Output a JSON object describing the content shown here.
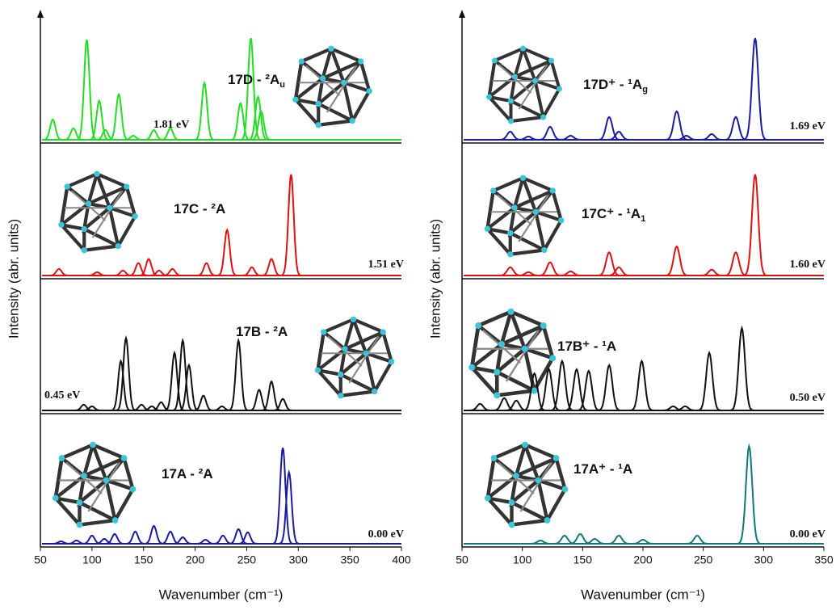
{
  "chart_data": [
    {
      "type": "spectrum",
      "xlabel": "Wavenumber (cm⁻¹)",
      "ylabel": "Intensity (abr. units)",
      "xlim": [
        50,
        400
      ],
      "xticks": [
        50,
        100,
        150,
        200,
        250,
        300,
        350,
        400
      ],
      "ylim": [
        0,
        160
      ],
      "panels": [
        {
          "label": "17D - ²A",
          "sub": "u",
          "energy": "1.81 eV",
          "color": "#22dd22",
          "x": [
            62,
            82,
            95,
            107,
            113,
            126,
            140,
            160,
            176,
            209,
            244,
            254,
            261,
            264
          ],
          "values": [
            25,
            14,
            123,
            48,
            12,
            56,
            5,
            12,
            14,
            70,
            45,
            125,
            53,
            35
          ]
        },
        {
          "label": "17C - ²A",
          "energy": "1.51 eV",
          "color": "#dd1111",
          "x": [
            68,
            105,
            130,
            145,
            155,
            165,
            178,
            211,
            231,
            255,
            274,
            293
          ],
          "values": [
            8,
            4,
            6,
            15,
            20,
            6,
            8,
            15,
            55,
            10,
            20,
            122
          ]
        },
        {
          "label": "17B - ²A",
          "energy": "0.45 eV",
          "color": "#111111",
          "x": [
            92,
            100,
            128,
            133,
            148,
            158,
            167,
            180,
            188,
            194,
            208,
            226,
            242,
            262,
            274,
            285
          ],
          "values": [
            7,
            5,
            60,
            88,
            7,
            5,
            10,
            70,
            85,
            55,
            18,
            5,
            85,
            25,
            35,
            14
          ]
        },
        {
          "label": "17A - ²A",
          "energy": "0.00 eV",
          "color": "#1a1aa0",
          "x": [
            70,
            85,
            100,
            112,
            122,
            142,
            160,
            176,
            188,
            210,
            227,
            242,
            251,
            285,
            291
          ],
          "values": [
            3,
            4,
            10,
            6,
            12,
            15,
            22,
            15,
            8,
            5,
            10,
            18,
            14,
            118,
            88
          ]
        }
      ]
    },
    {
      "type": "spectrum",
      "xlabel": "Wavenumber (cm⁻¹)",
      "ylabel": "Intensity (abr. units)",
      "xlim": [
        50,
        350
      ],
      "xticks": [
        50,
        100,
        150,
        200,
        250,
        300,
        350
      ],
      "ylim": [
        0,
        160
      ],
      "panels": [
        {
          "label": "17D⁺ - ¹A",
          "sub": "g",
          "energy": "1.69 eV",
          "color": "#1a1aa0",
          "x": [
            90,
            105,
            123,
            140,
            172,
            180,
            228,
            236,
            257,
            277,
            293
          ],
          "values": [
            10,
            4,
            16,
            5,
            28,
            10,
            35,
            5,
            7,
            28,
            125
          ]
        },
        {
          "label": "17C⁺ - ¹A",
          "sub": "1",
          "energy": "1.60 eV",
          "color": "#dd1111",
          "x": [
            90,
            105,
            123,
            140,
            172,
            180,
            228,
            257,
            277,
            293
          ],
          "values": [
            10,
            4,
            16,
            5,
            28,
            10,
            35,
            7,
            28,
            122
          ]
        },
        {
          "label": "17B⁺ - ¹A",
          "energy": "0.50 eV",
          "color": "#111111",
          "x": [
            65,
            85,
            95,
            110,
            122,
            133,
            145,
            155,
            172,
            199,
            225,
            235,
            255,
            282
          ],
          "values": [
            8,
            15,
            12,
            45,
            50,
            60,
            50,
            48,
            55,
            60,
            5,
            5,
            70,
            100
          ]
        },
        {
          "label": "17A⁺ - ¹A",
          "energy": "0.00 eV",
          "color": "#107878",
          "x": [
            115,
            135,
            148,
            160,
            180,
            200,
            245,
            288
          ],
          "values": [
            4,
            10,
            12,
            6,
            10,
            5,
            10,
            120
          ]
        }
      ]
    }
  ]
}
